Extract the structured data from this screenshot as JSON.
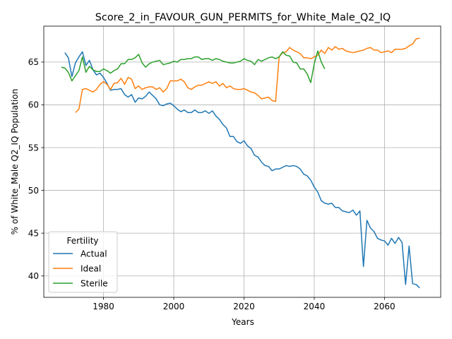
{
  "chart_data": {
    "type": "line",
    "title": "Score_2_in_FAVOUR_GUN_PERMITS_for_White_Male_Q2_IQ",
    "xlabel": "Years",
    "ylabel": "% of White_Male Q2_IQ Population",
    "xlim": [
      1963,
      2076
    ],
    "ylim": [
      37.5,
      69.2
    ],
    "x_ticks": [
      1980,
      2000,
      2020,
      2040,
      2060
    ],
    "y_ticks": [
      40,
      45,
      50,
      55,
      60,
      65
    ],
    "grid": true,
    "legend": {
      "title": "Fertility",
      "position": "lower-left"
    },
    "series": [
      {
        "name": "Actual",
        "color": "#1f77b4",
        "x": [
          1969,
          1970,
          1971,
          1972,
          1973,
          1974,
          1975,
          1976,
          1977,
          1978,
          1979,
          1980,
          1981,
          1982,
          1983,
          1984,
          1985,
          1986,
          1987,
          1988,
          1989,
          1990,
          1991,
          1992,
          1993,
          1994,
          1995,
          1996,
          1997,
          1998,
          1999,
          2000,
          2001,
          2002,
          2003,
          2004,
          2005,
          2006,
          2007,
          2008,
          2009,
          2010,
          2011,
          2012,
          2013,
          2014,
          2015,
          2016,
          2017,
          2018,
          2019,
          2020,
          2021,
          2022,
          2023,
          2024,
          2025,
          2026,
          2027,
          2028,
          2029,
          2030,
          2031,
          2032,
          2033,
          2034,
          2035,
          2036,
          2037,
          2038,
          2039,
          2040,
          2041,
          2042,
          2043,
          2044,
          2045,
          2046,
          2047,
          2048,
          2049,
          2050,
          2051,
          2052,
          2053,
          2054,
          2055,
          2056,
          2057,
          2058,
          2059,
          2060,
          2061,
          2062,
          2063,
          2064,
          2065,
          2066,
          2067,
          2068,
          2069,
          2070
        ],
        "values": [
          66.1,
          65.5,
          63.3,
          64.9,
          65.6,
          66.2,
          64.6,
          65.2,
          64.1,
          63.5,
          63.7,
          63.2,
          62.5,
          61.7,
          61.8,
          61.8,
          61.9,
          61.2,
          60.9,
          61.2,
          60.3,
          60.8,
          60.7,
          61.0,
          61.5,
          61.1,
          60.7,
          60.0,
          59.9,
          60.1,
          60.2,
          59.9,
          59.5,
          59.2,
          59.4,
          59.1,
          59.1,
          59.4,
          59.1,
          59.1,
          59.3,
          59.0,
          59.3,
          58.7,
          58.3,
          57.7,
          57.3,
          56.3,
          56.3,
          55.7,
          55.5,
          55.8,
          55.2,
          54.9,
          54.1,
          53.9,
          53.3,
          52.9,
          52.8,
          52.3,
          52.5,
          52.5,
          52.7,
          52.9,
          52.8,
          52.9,
          52.8,
          52.5,
          51.9,
          51.7,
          51.2,
          50.4,
          49.8,
          48.8,
          48.5,
          48.4,
          48.5,
          48.0,
          48.0,
          47.6,
          47.5,
          47.4,
          47.7,
          47.1,
          47.6,
          41.1,
          46.5,
          45.6,
          45.2,
          44.4,
          44.2,
          44.1,
          43.6,
          44.4,
          43.8,
          44.5,
          43.9,
          39.0,
          43.5,
          39.1,
          39.0,
          38.6
        ]
      },
      {
        "name": "Ideal",
        "color": "#ff7f0e",
        "x": [
          1972,
          1973,
          1974,
          1975,
          1976,
          1977,
          1978,
          1979,
          1980,
          1981,
          1982,
          1983,
          1984,
          1985,
          1986,
          1987,
          1988,
          1989,
          1990,
          1991,
          1992,
          1993,
          1994,
          1995,
          1996,
          1997,
          1998,
          1999,
          2000,
          2001,
          2002,
          2003,
          2004,
          2005,
          2006,
          2007,
          2008,
          2009,
          2010,
          2011,
          2012,
          2013,
          2014,
          2015,
          2016,
          2017,
          2018,
          2019,
          2020,
          2021,
          2022,
          2023,
          2024,
          2025,
          2026,
          2027,
          2028,
          2029,
          2030,
          2031,
          2032,
          2033,
          2034,
          2035,
          2036,
          2037,
          2038,
          2039,
          2040,
          2041,
          2042,
          2043,
          2044,
          2045,
          2046,
          2047,
          2048,
          2049,
          2050,
          2051,
          2052,
          2053,
          2054,
          2055,
          2056,
          2057,
          2058,
          2059,
          2060,
          2061,
          2062,
          2063,
          2064,
          2065,
          2066,
          2067,
          2068,
          2069,
          2070
        ],
        "values": [
          59.1,
          59.5,
          61.8,
          61.9,
          61.7,
          61.5,
          61.8,
          62.4,
          62.7,
          62.4,
          61.8,
          62.5,
          62.6,
          63.1,
          62.4,
          63.2,
          63.0,
          61.9,
          62.2,
          61.8,
          62.0,
          62.1,
          62.1,
          61.8,
          62.0,
          61.5,
          61.9,
          62.8,
          62.8,
          62.8,
          63.0,
          62.7,
          62.0,
          61.8,
          62.1,
          62.3,
          62.3,
          62.5,
          62.7,
          62.5,
          62.7,
          62.2,
          62.5,
          62.0,
          62.2,
          61.9,
          61.8,
          61.8,
          61.9,
          61.7,
          61.5,
          61.4,
          61.1,
          60.7,
          60.8,
          60.9,
          60.5,
          60.4,
          65.6,
          66.1,
          66.2,
          66.7,
          66.4,
          66.2,
          66.0,
          65.5,
          65.5,
          65.4,
          65.6,
          65.8,
          66.4,
          66.0,
          66.7,
          66.4,
          66.8,
          66.5,
          66.6,
          66.3,
          66.2,
          66.1,
          66.2,
          66.3,
          66.4,
          66.6,
          66.7,
          66.4,
          66.4,
          66.1,
          66.2,
          66.3,
          66.1,
          66.5,
          66.5,
          66.5,
          66.6,
          66.9,
          67.1,
          67.7,
          67.8
        ]
      },
      {
        "name": "Sterile",
        "color": "#2ca02c",
        "x": [
          1968,
          1969,
          1970,
          1971,
          1972,
          1973,
          1974,
          1975,
          1976,
          1977,
          1978,
          1979,
          1980,
          1981,
          1982,
          1983,
          1984,
          1985,
          1986,
          1987,
          1988,
          1989,
          1990,
          1991,
          1992,
          1993,
          1994,
          1995,
          1996,
          1997,
          1998,
          1999,
          2000,
          2001,
          2002,
          2003,
          2004,
          2005,
          2006,
          2007,
          2008,
          2009,
          2010,
          2011,
          2012,
          2013,
          2014,
          2015,
          2016,
          2017,
          2018,
          2019,
          2020,
          2021,
          2022,
          2023,
          2024,
          2025,
          2026,
          2027,
          2028,
          2029,
          2030,
          2031,
          2032,
          2033,
          2034,
          2035,
          2036,
          2037,
          2038,
          2039,
          2040,
          2041,
          2042,
          2043
        ],
        "values": [
          64.4,
          64.3,
          63.8,
          62.8,
          63.4,
          64.0,
          65.6,
          63.8,
          64.5,
          64.1,
          63.9,
          63.9,
          64.2,
          64.0,
          63.7,
          64.0,
          64.2,
          64.8,
          64.8,
          65.3,
          65.3,
          65.5,
          65.9,
          64.9,
          64.4,
          64.8,
          65.0,
          65.1,
          65.2,
          64.7,
          64.8,
          64.9,
          65.1,
          65.0,
          65.3,
          65.3,
          65.4,
          65.4,
          65.6,
          65.6,
          65.3,
          65.4,
          65.4,
          65.2,
          65.4,
          65.3,
          65.1,
          65.0,
          64.9,
          64.9,
          65.0,
          65.1,
          65.4,
          65.2,
          65.1,
          64.7,
          65.3,
          65.1,
          65.3,
          65.5,
          65.6,
          65.4,
          65.6,
          66.2,
          65.8,
          65.7,
          65.0,
          64.9,
          64.2,
          64.2,
          63.6,
          62.6,
          64.8,
          66.3,
          65.0,
          64.2
        ]
      }
    ]
  }
}
